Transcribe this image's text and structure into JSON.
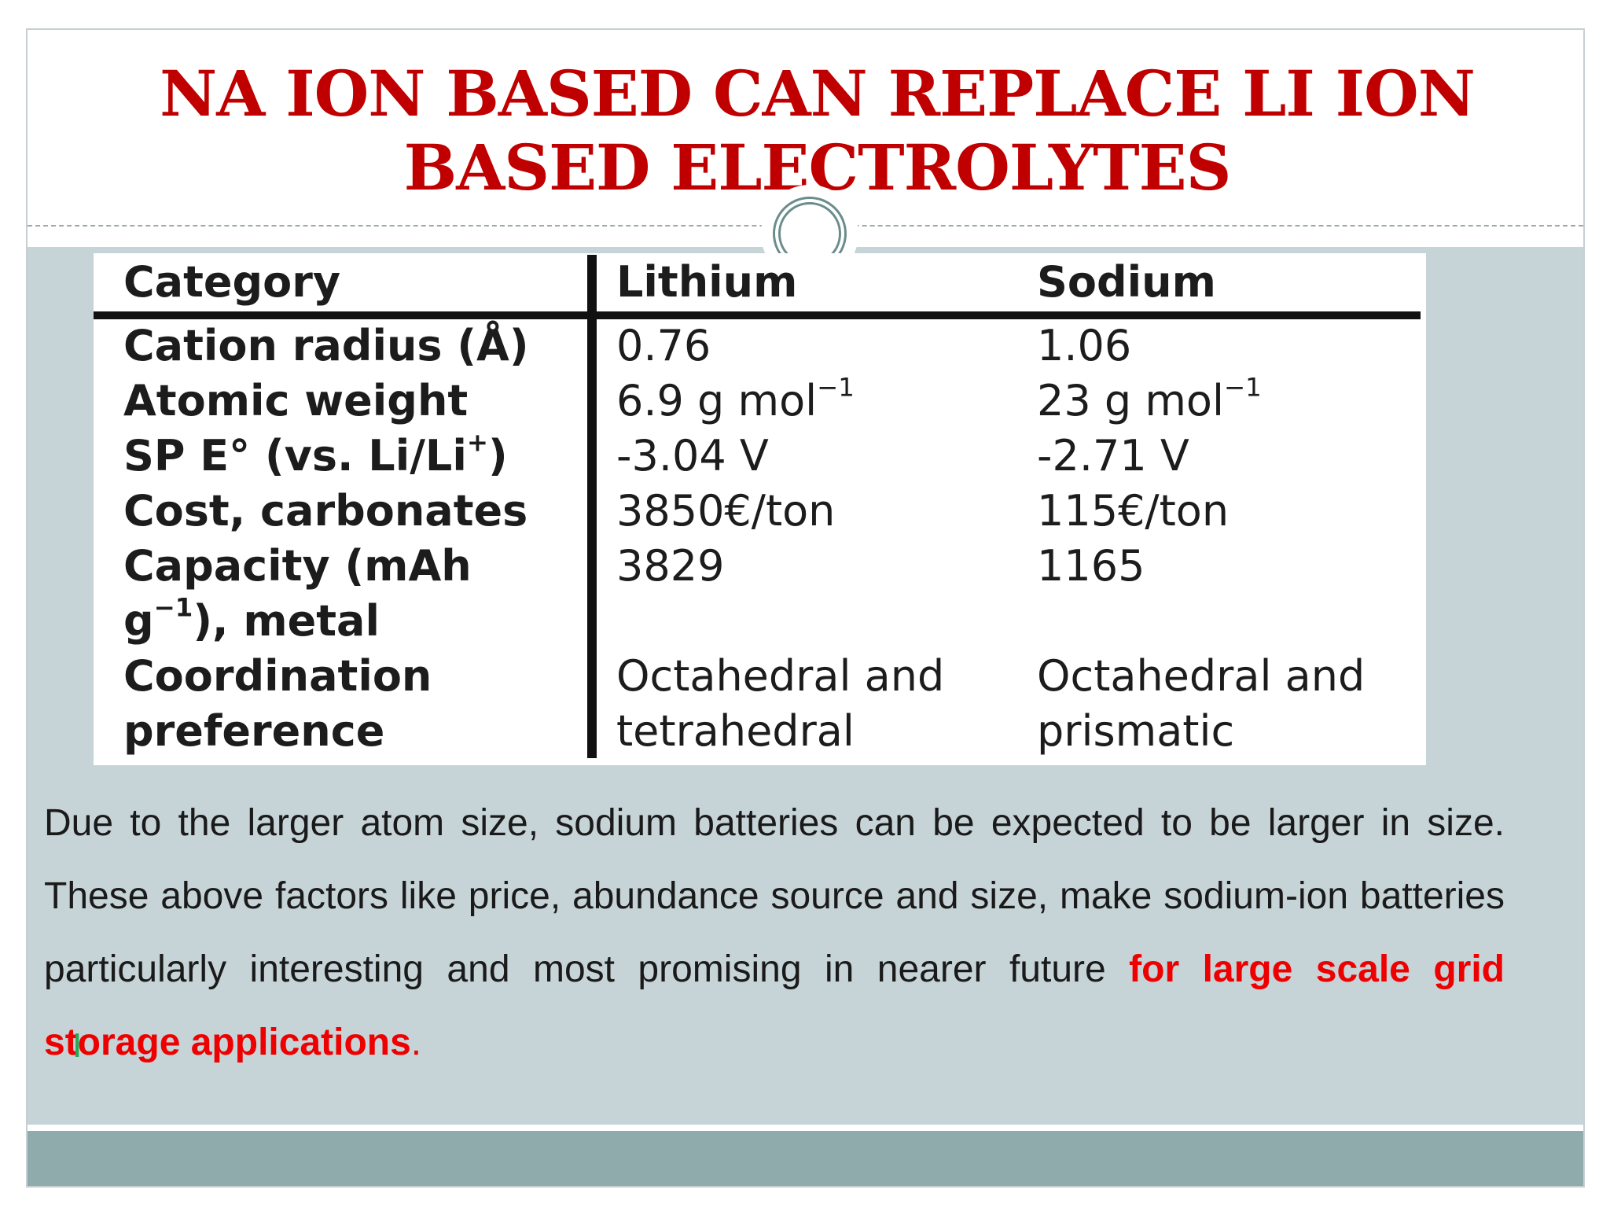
{
  "slide": {
    "title": "NA ION BASED CAN REPLACE LI ION BASED ELECTROLYTES"
  },
  "table": {
    "headers": [
      "Category",
      "Lithium",
      "Sodium"
    ],
    "rows": [
      {
        "category": "Cation radius (Å)",
        "lithium": "0.76",
        "sodium": "1.06"
      },
      {
        "category": "Atomic weight",
        "lithium": "6.9 g mol",
        "lithium_sup": "−1",
        "sodium": "23 g mol",
        "sodium_sup": "−1"
      },
      {
        "category": "SP E° (vs. Li/Li",
        "category_sup": "+",
        "category_tail": ")",
        "lithium": "-3.04 V",
        "sodium": "-2.71 V"
      },
      {
        "category": "Cost, carbonates",
        "lithium": "3850€/ton",
        "sodium": "115€/ton"
      },
      {
        "category": "Capacity (mAh",
        "category_line2": "g",
        "category_line2_sup": "−1",
        "category_line2_tail": "), metal",
        "lithium": "3829",
        "sodium": "1165"
      },
      {
        "category": "Coordination",
        "category_line2": "preference",
        "lithium": "Octahedral and",
        "lithium_line2": "tetrahedral",
        "sodium": "Octahedral and",
        "sodium_line2": "prismatic"
      }
    ]
  },
  "paragraph": {
    "text": "Due to the larger atom size, sodium batteries can be expected to be larger in size. These above factors like price, abundance source and size, make sodium-ion batteries particularly interesting and most promising in nearer future ",
    "highlight": "for large scale grid storage applications",
    "end": "."
  },
  "cursor": "I",
  "colors": {
    "title": "#c00000",
    "content_bg": "#c6d3d7",
    "footer_bar": "#8fabac",
    "highlight": "#ee0000"
  }
}
